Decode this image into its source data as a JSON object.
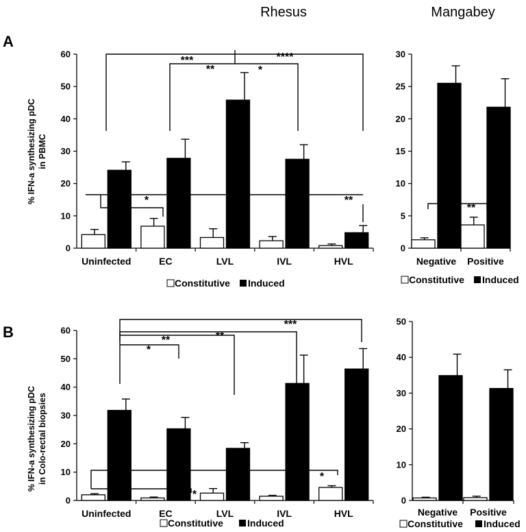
{
  "headers": {
    "rhesus": "Rhesus",
    "mangabey": "Mangabey"
  },
  "panel_labels": {
    "a": "A",
    "b": "B"
  },
  "legend": {
    "constitutive": "Constitutive",
    "induced": "Induced"
  },
  "colors": {
    "constitutive": "#ffffff",
    "induced": "#000000",
    "axis": "#000000"
  },
  "chart_data": [
    {
      "id": "A-rhesus",
      "type": "bar",
      "ylabel_lines": [
        "% IFN-a synthesizing pDC",
        "in PBMC"
      ],
      "ylim": [
        0,
        60
      ],
      "yticks": [
        0,
        10,
        20,
        30,
        40,
        50,
        60
      ],
      "categories": [
        "Uninfected",
        "EC",
        "LVL",
        "IVL",
        "HVL"
      ],
      "series": [
        {
          "name": "Constitutive",
          "values": [
            4.2,
            6.8,
            3.3,
            2.3,
            0.8
          ],
          "errors": [
            1.6,
            2.4,
            2.7,
            1.3,
            0.5
          ]
        },
        {
          "name": "Induced",
          "values": [
            24.1,
            27.8,
            45.8,
            27.5,
            4.8
          ],
          "errors": [
            2.6,
            5.9,
            8.5,
            4.5,
            2.2
          ]
        }
      ],
      "significance": [
        "***",
        "**",
        "*",
        "****",
        "*",
        "**"
      ],
      "legend_position": "bottom"
    },
    {
      "id": "A-mangabey",
      "type": "bar",
      "ylim": [
        0,
        30
      ],
      "yticks": [
        0,
        5,
        10,
        15,
        20,
        25,
        30
      ],
      "categories": [
        "Negative",
        "Positive"
      ],
      "series": [
        {
          "name": "Constitutive",
          "values": [
            1.3,
            3.6
          ],
          "errors": [
            0.3,
            1.2
          ]
        },
        {
          "name": "Induced",
          "values": [
            25.5,
            21.8
          ],
          "errors": [
            2.7,
            4.4
          ]
        }
      ],
      "significance": [
        "**"
      ],
      "legend_position": "bottom"
    },
    {
      "id": "B-rhesus",
      "type": "bar",
      "ylabel_lines": [
        "% IFN-a synthesizing pDC",
        "in Colo-rectal biopsies"
      ],
      "ylim": [
        0,
        60
      ],
      "yticks": [
        0,
        10,
        20,
        30,
        40,
        50,
        60
      ],
      "categories": [
        "Uninfected",
        "EC",
        "LVL",
        "IVL",
        "HVL"
      ],
      "series": [
        {
          "name": "Constitutive",
          "values": [
            2.0,
            0.9,
            2.6,
            1.5,
            4.6
          ],
          "errors": [
            0.4,
            0.3,
            1.6,
            0.3,
            0.6
          ]
        },
        {
          "name": "Induced",
          "values": [
            31.8,
            25.3,
            18.4,
            41.3,
            46.4
          ],
          "errors": [
            4.0,
            4.0,
            2.0,
            10.0,
            7.2
          ]
        }
      ],
      "significance": [
        "***",
        "**",
        "**",
        "*",
        "*",
        "*"
      ],
      "legend_position": "bottom"
    },
    {
      "id": "B-mangabey",
      "type": "bar",
      "ylim": [
        0,
        50
      ],
      "yticks": [
        0,
        10,
        20,
        30,
        40,
        50
      ],
      "categories": [
        "Negative",
        "Positive"
      ],
      "series": [
        {
          "name": "Constitutive",
          "values": [
            0.7,
            0.8
          ],
          "errors": [
            0.2,
            0.4
          ]
        },
        {
          "name": "Induced",
          "values": [
            34.9,
            31.3
          ],
          "errors": [
            6.0,
            5.2
          ]
        }
      ],
      "legend_position": "bottom"
    }
  ]
}
